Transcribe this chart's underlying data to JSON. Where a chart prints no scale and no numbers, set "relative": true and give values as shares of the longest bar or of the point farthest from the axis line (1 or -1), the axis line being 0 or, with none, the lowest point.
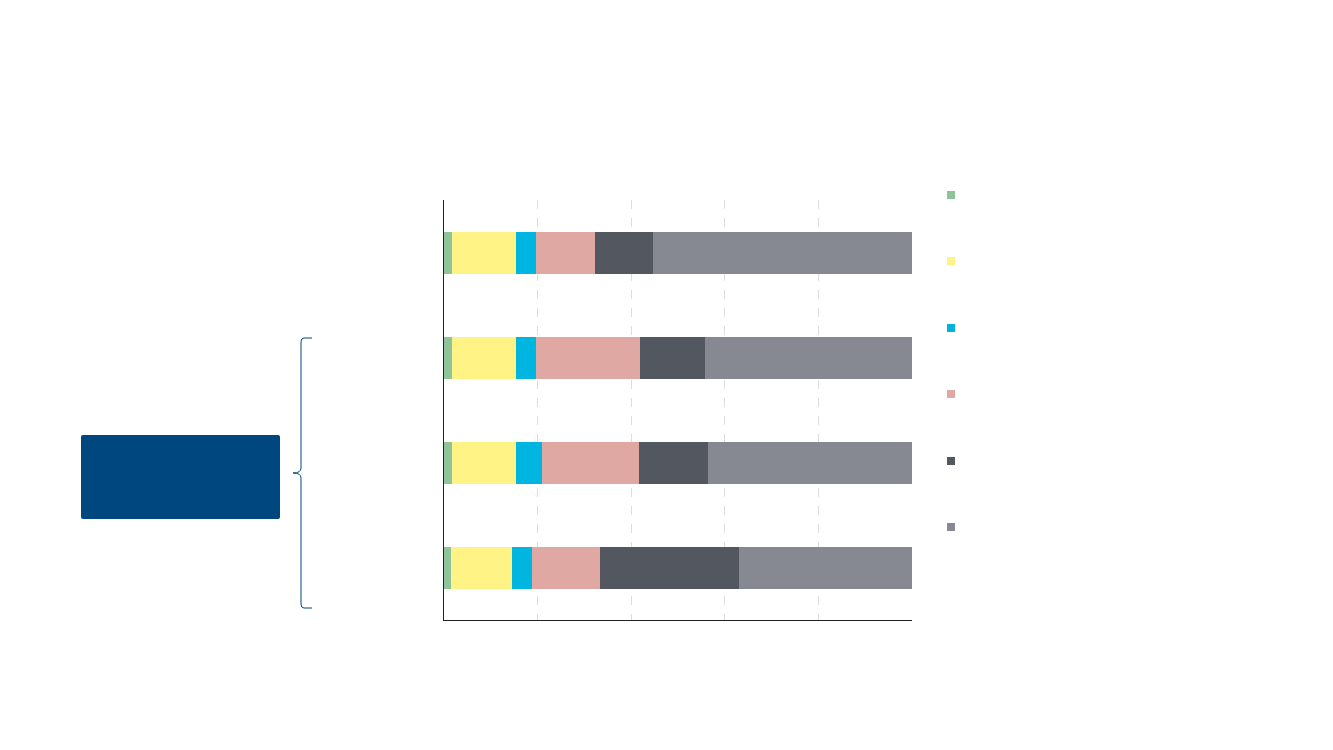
{
  "chart_data": {
    "type": "bar",
    "orientation": "horizontal",
    "stacked": true,
    "relative": true,
    "categories": [
      null,
      null,
      null,
      null
    ],
    "grid": "x",
    "series": [
      {
        "color": "#8fc49a",
        "values": [
          0.017,
          0.017,
          0.017,
          0.015
        ]
      },
      {
        "color": "#fff385",
        "values": [
          0.137,
          0.137,
          0.137,
          0.13
        ]
      },
      {
        "color": "#00b5e0",
        "values": [
          0.043,
          0.043,
          0.056,
          0.043
        ]
      },
      {
        "color": "#e0a8a2",
        "values": [
          0.126,
          0.222,
          0.207,
          0.145
        ]
      },
      {
        "color": "#53575f",
        "values": [
          0.124,
          0.139,
          0.147,
          0.297
        ]
      },
      {
        "color": "#868991",
        "values": [
          0.553,
          0.442,
          0.436,
          0.37
        ]
      }
    ]
  }
}
